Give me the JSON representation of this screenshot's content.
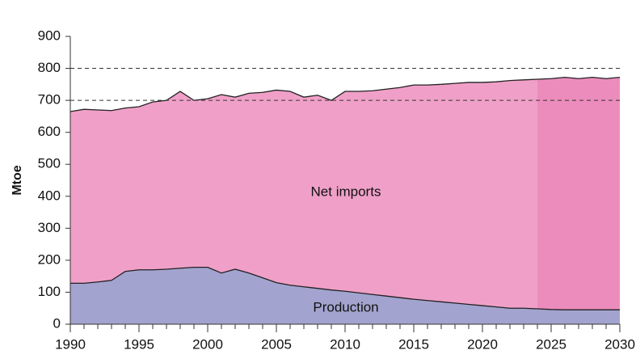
{
  "chart_data": {
    "type": "stacked_area",
    "y_label": "Mtoe",
    "x": [
      1990,
      1991,
      1992,
      1993,
      1994,
      1995,
      1996,
      1997,
      1998,
      1999,
      2000,
      2001,
      2002,
      2003,
      2004,
      2005,
      2006,
      2007,
      2008,
      2009,
      2010,
      2011,
      2012,
      2013,
      2014,
      2015,
      2016,
      2017,
      2018,
      2019,
      2020,
      2021,
      2022,
      2023,
      2024,
      2025,
      2026,
      2027,
      2028,
      2029,
      2030
    ],
    "series": [
      {
        "name": "Production",
        "color": "#a3a3cf",
        "values": [
          128,
          128,
          132,
          137,
          165,
          170,
          170,
          172,
          175,
          178,
          178,
          160,
          172,
          160,
          145,
          130,
          122,
          117,
          112,
          107,
          103,
          98,
          93,
          88,
          83,
          78,
          74,
          70,
          66,
          62,
          58,
          54,
          50,
          50,
          48,
          46,
          45,
          45,
          45,
          45,
          45
        ]
      },
      {
        "name": "Net imports",
        "color": "#f0a0c8",
        "values": [
          537,
          544,
          538,
          531,
          511,
          510,
          525,
          528,
          553,
          522,
          527,
          558,
          538,
          562,
          580,
          602,
          606,
          593,
          604,
          593,
          625,
          630,
          637,
          647,
          657,
          670,
          674,
          680,
          687,
          694,
          698,
          704,
          712,
          714,
          718,
          722,
          727,
          723,
          727,
          723,
          727
        ]
      }
    ],
    "projection_from": 2024,
    "projection_color": "#ec8cbc",
    "dashed_lines": [
      700,
      800
    ],
    "xlim": [
      1990,
      2030
    ],
    "xticks": [
      1990,
      1995,
      2000,
      2005,
      2010,
      2015,
      2020,
      2025,
      2030
    ],
    "ylim": [
      0,
      900
    ],
    "yticks": [
      0,
      100,
      200,
      300,
      400,
      500,
      600,
      700,
      800,
      900
    ]
  }
}
